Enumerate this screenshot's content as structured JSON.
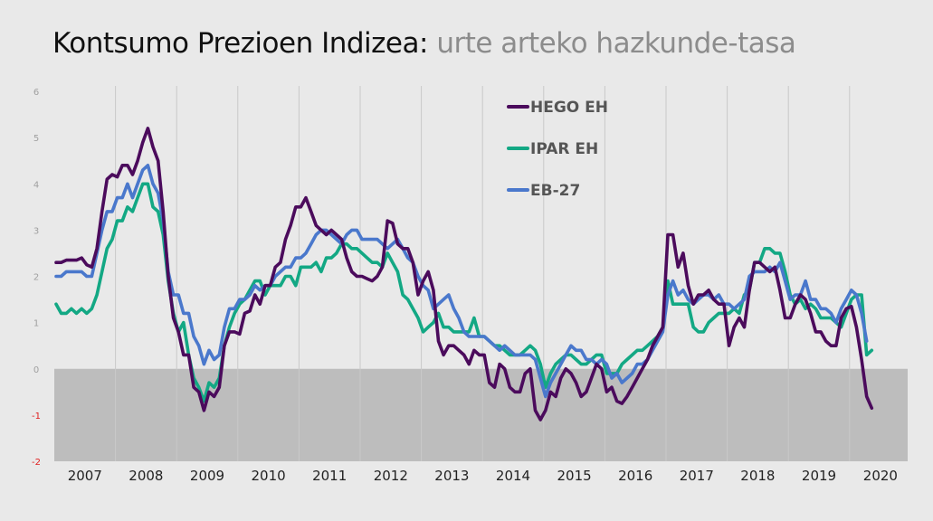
{
  "title": {
    "main": "Kontsumo Prezioen Indizea:",
    "sub": "urte arteko hazkunde-tasa"
  },
  "chart_data": {
    "type": "line",
    "title": "Kontsumo Prezioen Indizea: urte arteko hazkunde-tasa",
    "xlabel": "",
    "ylabel": "",
    "frequency": "monthly",
    "start": "2007-01",
    "ylim": [
      -2,
      6
    ],
    "yticks": [
      "6",
      "5",
      "4",
      "3",
      "2",
      "1",
      "0",
      "-1",
      "-2"
    ],
    "xticks": [
      "2007",
      "2008",
      "2009",
      "2010",
      "2011",
      "2012",
      "2013",
      "2014",
      "2015",
      "2016",
      "2017",
      "2018",
      "2019",
      "2020"
    ],
    "negative_band": [
      -2,
      0
    ],
    "legend_position": "top-center",
    "series": [
      {
        "name": "HEGO EH",
        "color": "#4b0b5c",
        "values": [
          2.3,
          2.3,
          2.35,
          2.35,
          2.35,
          2.4,
          2.25,
          2.2,
          2.6,
          3.4,
          4.1,
          4.2,
          4.15,
          4.4,
          4.4,
          4.2,
          4.5,
          4.9,
          5.2,
          4.8,
          4.5,
          3.4,
          2.0,
          1.1,
          0.8,
          0.3,
          0.3,
          -0.4,
          -0.5,
          -0.9,
          -0.5,
          -0.6,
          -0.4,
          0.5,
          0.8,
          0.8,
          0.75,
          1.2,
          1.25,
          1.6,
          1.4,
          1.8,
          1.8,
          2.2,
          2.3,
          2.8,
          3.1,
          3.5,
          3.5,
          3.7,
          3.4,
          3.1,
          3.0,
          2.9,
          3.0,
          2.9,
          2.8,
          2.4,
          2.1,
          2.0,
          2.0,
          1.95,
          1.9,
          2.0,
          2.2,
          3.2,
          3.15,
          2.7,
          2.6,
          2.6,
          2.3,
          1.6,
          1.9,
          2.1,
          1.7,
          0.6,
          0.3,
          0.5,
          0.5,
          0.4,
          0.3,
          0.1,
          0.4,
          0.3,
          0.3,
          -0.3,
          -0.4,
          0.1,
          0.0,
          -0.4,
          -0.5,
          -0.5,
          -0.1,
          0.0,
          -0.9,
          -1.1,
          -0.9,
          -0.5,
          -0.6,
          -0.2,
          0.0,
          -0.1,
          -0.3,
          -0.6,
          -0.5,
          -0.2,
          0.1,
          0.0,
          -0.5,
          -0.4,
          -0.7,
          -0.75,
          -0.6,
          -0.4,
          -0.2,
          0.0,
          0.2,
          0.5,
          0.7,
          0.9,
          2.9,
          2.9,
          2.2,
          2.5,
          1.8,
          1.4,
          1.6,
          1.6,
          1.7,
          1.5,
          1.4,
          1.4,
          0.5,
          0.9,
          1.1,
          0.9,
          1.7,
          2.3,
          2.3,
          2.2,
          2.1,
          2.2,
          1.7,
          1.1,
          1.1,
          1.4,
          1.6,
          1.5,
          1.2,
          0.8,
          0.8,
          0.6,
          0.5,
          0.5,
          1.1,
          1.3,
          1.35,
          0.9,
          0.2,
          -0.6,
          -0.85
        ]
      },
      {
        "name": "IPAR EH",
        "color": "#13a884",
        "values": [
          1.4,
          1.2,
          1.2,
          1.3,
          1.2,
          1.3,
          1.2,
          1.3,
          1.6,
          2.1,
          2.6,
          2.8,
          3.2,
          3.2,
          3.5,
          3.4,
          3.7,
          4.0,
          4.0,
          3.5,
          3.4,
          2.9,
          1.9,
          1.2,
          0.8,
          1.0,
          0.3,
          -0.2,
          -0.4,
          -0.7,
          -0.3,
          -0.4,
          -0.2,
          0.5,
          0.9,
          1.2,
          1.4,
          1.5,
          1.7,
          1.9,
          1.9,
          1.6,
          1.8,
          1.8,
          1.8,
          2.0,
          2.0,
          1.8,
          2.2,
          2.2,
          2.2,
          2.3,
          2.1,
          2.4,
          2.4,
          2.5,
          2.7,
          2.7,
          2.6,
          2.6,
          2.5,
          2.4,
          2.3,
          2.3,
          2.2,
          2.5,
          2.3,
          2.1,
          1.6,
          1.5,
          1.3,
          1.1,
          0.8,
          0.9,
          1.0,
          1.2,
          0.9,
          0.9,
          0.8,
          0.8,
          0.8,
          0.8,
          1.1,
          0.7,
          0.7,
          0.6,
          0.5,
          0.5,
          0.4,
          0.3,
          0.3,
          0.3,
          0.4,
          0.5,
          0.4,
          0.1,
          -0.4,
          -0.1,
          0.1,
          0.2,
          0.3,
          0.3,
          0.2,
          0.1,
          0.1,
          0.2,
          0.3,
          0.3,
          -0.1,
          -0.1,
          -0.1,
          0.1,
          0.2,
          0.3,
          0.4,
          0.4,
          0.5,
          0.6,
          0.7,
          0.9,
          1.9,
          1.4,
          1.4,
          1.4,
          1.4,
          0.9,
          0.8,
          0.8,
          1.0,
          1.1,
          1.2,
          1.2,
          1.2,
          1.3,
          1.2,
          1.6,
          1.7,
          2.3,
          2.3,
          2.6,
          2.6,
          2.5,
          2.5,
          2.1,
          1.6,
          1.4,
          1.5,
          1.3,
          1.4,
          1.3,
          1.1,
          1.1,
          1.1,
          1.0,
          0.9,
          1.2,
          1.5,
          1.6,
          1.6,
          0.3,
          0.4
        ]
      },
      {
        "name": "EB-27",
        "color": "#4a78cc",
        "values": [
          2.0,
          2.0,
          2.1,
          2.1,
          2.1,
          2.1,
          2.0,
          2.0,
          2.5,
          3.0,
          3.4,
          3.4,
          3.7,
          3.7,
          4.0,
          3.7,
          4.0,
          4.3,
          4.4,
          4.0,
          3.8,
          3.2,
          2.1,
          1.6,
          1.6,
          1.2,
          1.2,
          0.7,
          0.5,
          0.1,
          0.4,
          0.2,
          0.3,
          0.9,
          1.3,
          1.3,
          1.5,
          1.5,
          1.6,
          1.8,
          1.7,
          1.8,
          1.8,
          2.0,
          2.1,
          2.2,
          2.2,
          2.4,
          2.4,
          2.5,
          2.7,
          2.9,
          3.0,
          3.0,
          2.9,
          2.8,
          2.7,
          2.9,
          3.0,
          3.0,
          2.8,
          2.8,
          2.8,
          2.8,
          2.7,
          2.6,
          2.7,
          2.8,
          2.6,
          2.4,
          2.3,
          2.0,
          1.8,
          1.7,
          1.3,
          1.4,
          1.5,
          1.6,
          1.3,
          1.1,
          0.8,
          0.7,
          0.7,
          0.7,
          0.7,
          0.6,
          0.5,
          0.4,
          0.5,
          0.4,
          0.3,
          0.3,
          0.3,
          0.3,
          0.2,
          -0.2,
          -0.6,
          -0.3,
          -0.1,
          0.1,
          0.3,
          0.5,
          0.4,
          0.4,
          0.2,
          0.2,
          0.1,
          0.2,
          0.1,
          -0.2,
          -0.1,
          -0.3,
          -0.2,
          -0.1,
          0.1,
          0.1,
          0.2,
          0.4,
          0.6,
          0.8,
          1.6,
          1.9,
          1.6,
          1.7,
          1.5,
          1.4,
          1.5,
          1.6,
          1.6,
          1.5,
          1.6,
          1.4,
          1.4,
          1.3,
          1.4,
          1.5,
          2.0,
          2.1,
          2.1,
          2.1,
          2.2,
          2.1,
          2.3,
          1.9,
          1.5,
          1.6,
          1.6,
          1.9,
          1.5,
          1.5,
          1.3,
          1.3,
          1.2,
          1.0,
          1.3,
          1.5,
          1.7,
          1.6,
          1.2,
          0.6
        ]
      }
    ]
  }
}
